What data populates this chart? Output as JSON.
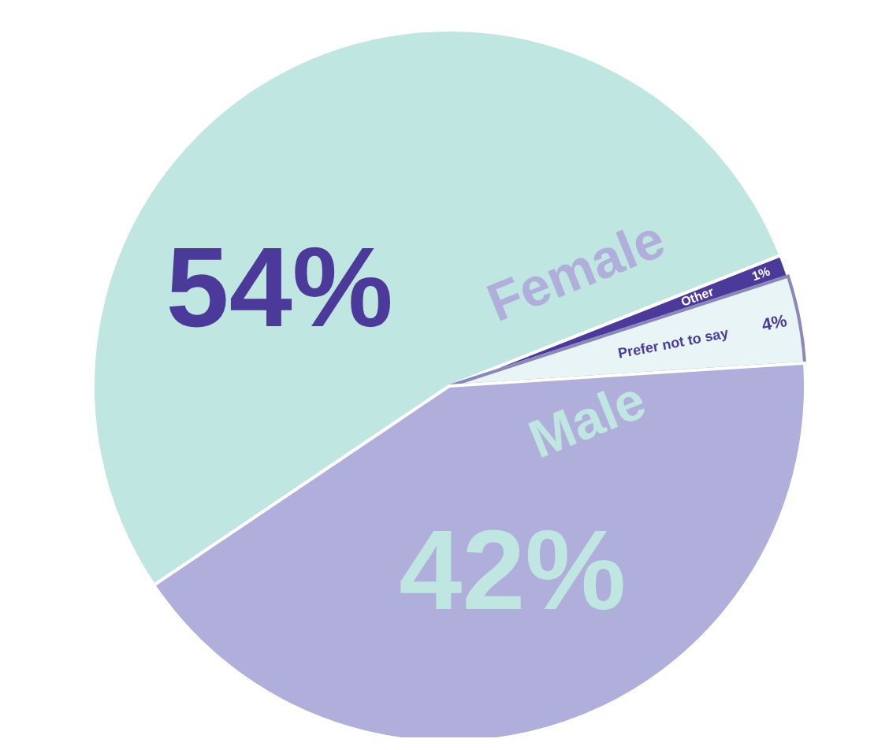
{
  "chart_data": {
    "type": "pie",
    "categories": [
      "Female",
      "Other",
      "Prefer not to say",
      "Male"
    ],
    "values": [
      54,
      1,
      4,
      42
    ],
    "colors": [
      "#bfe6e0",
      "#4b3a9a",
      "#e8f4f6",
      "#b0aedb"
    ],
    "value_labels": [
      "54%",
      "1%",
      "4%",
      "42%"
    ],
    "legend": false
  }
}
